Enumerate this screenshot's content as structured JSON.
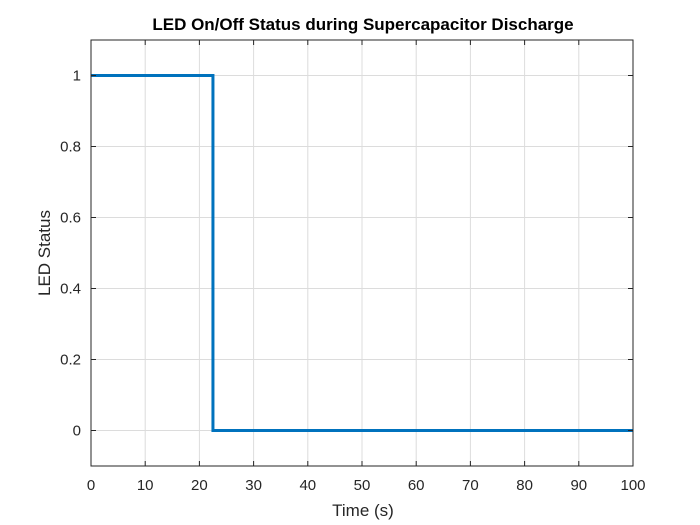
{
  "chart_data": {
    "type": "line",
    "title": "LED On/Off Status during Supercapacitor Discharge",
    "xlabel": "Time (s)",
    "ylabel": "LED Status",
    "xlim": [
      0,
      100
    ],
    "ylim": [
      -0.1,
      1.1
    ],
    "xticks": [
      0,
      10,
      20,
      30,
      40,
      50,
      60,
      70,
      80,
      90,
      100
    ],
    "xtick_labels": [
      "0",
      "10",
      "20",
      "30",
      "40",
      "50",
      "60",
      "70",
      "80",
      "90",
      "100"
    ],
    "yticks": [
      0,
      0.2,
      0.4,
      0.6,
      0.8,
      1
    ],
    "ytick_labels": [
      "0",
      "0.2",
      "0.4",
      "0.6",
      "0.8",
      "1"
    ],
    "grid": true,
    "series": [
      {
        "color": "#0072BD",
        "step": "post",
        "x": [
          0,
          22.5,
          22.5,
          100
        ],
        "y": [
          1,
          1,
          0,
          0
        ]
      }
    ]
  }
}
